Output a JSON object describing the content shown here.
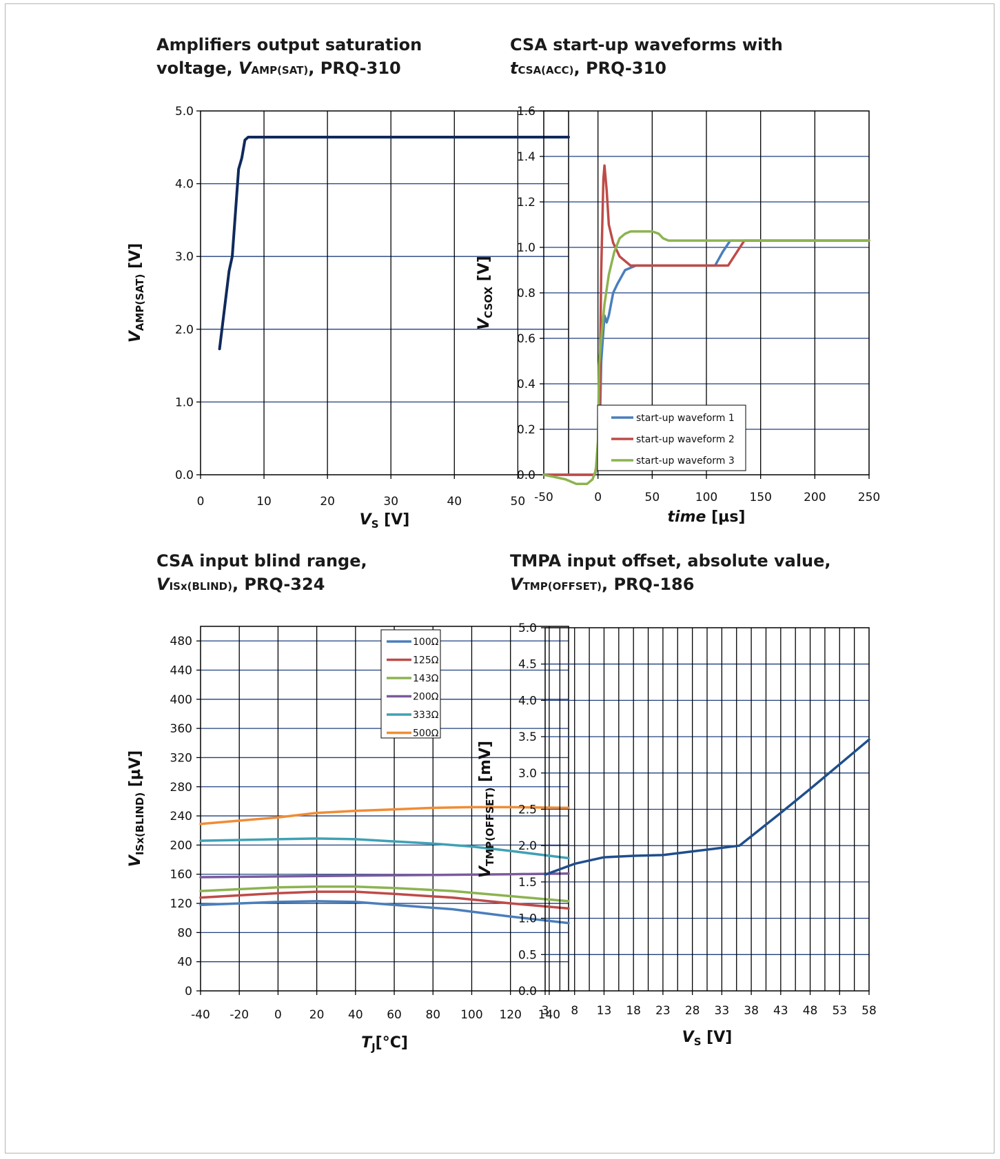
{
  "colors": {
    "grid": "#1f3f7f",
    "frame": "#000000",
    "page_border": "#b4b4b4"
  },
  "chart_data": [
    {
      "id": "amp-sat",
      "type": "line",
      "title_parts": [
        "Amplifiers output saturation",
        "voltage, ",
        "V",
        "AMP(SAT)",
        ", PRQ-310"
      ],
      "xlabel": {
        "v": "V",
        "sub": "S",
        "unit": " [V]"
      },
      "ylabel": {
        "v": "V",
        "sub": "AMP(SAT)",
        "unit": " [V]"
      },
      "xlim": [
        0,
        58
      ],
      "ylim": [
        0,
        5
      ],
      "xticks": [
        0,
        10,
        20,
        30,
        40,
        50
      ],
      "xtick_labels": [
        "0",
        "10",
        "20",
        "30",
        "40",
        "50"
      ],
      "yticks": [
        0,
        1,
        2,
        3,
        4,
        5
      ],
      "ytick_labels": [
        "0.0",
        "1.0",
        "2.0",
        "3.0",
        "4.0",
        "5.0"
      ],
      "vgrid": [
        10,
        20,
        30,
        40,
        50
      ],
      "hgrid": [
        1,
        2,
        3,
        4
      ],
      "series": [
        {
          "color": "#0f2a5c",
          "width": 4,
          "x": [
            3,
            4.5,
            5,
            6,
            6.5,
            7,
            7.5,
            58
          ],
          "y": [
            1.73,
            2.8,
            3.0,
            4.2,
            4.35,
            4.6,
            4.64,
            4.64
          ]
        }
      ]
    },
    {
      "id": "csa-startup",
      "type": "line",
      "title_parts": [
        "CSA start-up waveforms with",
        "t",
        "CSA(ACC)",
        ", PRQ-310"
      ],
      "xlabel": {
        "v": "time",
        "sub": "",
        "unit": " [µs]"
      },
      "ylabel": {
        "v": "V",
        "sub": "CSOX",
        "unit": " [V]"
      },
      "xlim": [
        -50,
        250
      ],
      "ylim": [
        0,
        1.6
      ],
      "xticks": [
        -50,
        0,
        50,
        100,
        150,
        200,
        250
      ],
      "xtick_labels": [
        "-50",
        "0",
        "50",
        "100",
        "150",
        "200",
        "250"
      ],
      "yticks": [
        0,
        0.2,
        0.4,
        0.6,
        0.8,
        1.0,
        1.2,
        1.4,
        1.6
      ],
      "ytick_labels": [
        "0.0",
        "0.2",
        "0.4",
        "0.6",
        "0.8",
        "1.0",
        "1.2",
        "1.4",
        "1.6"
      ],
      "vgrid": [
        0,
        50,
        100,
        150,
        200
      ],
      "hgrid": [
        0.2,
        0.4,
        0.6,
        0.8,
        1.0,
        1.2,
        1.4
      ],
      "legend": {
        "position": "bottom-center"
      },
      "series": [
        {
          "name": "start-up waveform 1",
          "color": "#4a7ebb",
          "width": 3.5,
          "x": [
            -50,
            -3,
            1,
            3,
            6,
            8,
            10,
            14,
            18,
            25,
            35,
            108,
            115,
            122,
            250
          ],
          "y": [
            0,
            0,
            0.05,
            0.5,
            0.7,
            0.67,
            0.7,
            0.8,
            0.84,
            0.9,
            0.92,
            0.92,
            0.98,
            1.03,
            1.03
          ]
        },
        {
          "name": "start-up waveform 2",
          "color": "#be4b48",
          "width": 3.5,
          "x": [
            -50,
            -3,
            1,
            3,
            5,
            6,
            8,
            10,
            14,
            20,
            25,
            30,
            40,
            100,
            110,
            120,
            135,
            250
          ],
          "y": [
            0,
            0,
            0.1,
            0.9,
            1.3,
            1.36,
            1.25,
            1.1,
            1.02,
            0.96,
            0.94,
            0.92,
            0.92,
            0.92,
            0.92,
            0.92,
            1.03,
            1.03
          ]
        },
        {
          "name": "start-up waveform 3",
          "color": "#8cb350",
          "width": 3.5,
          "x": [
            -50,
            -40,
            -30,
            -20,
            -10,
            -5,
            -2,
            0,
            1,
            3,
            6,
            10,
            15,
            20,
            25,
            30,
            50,
            56,
            60,
            65,
            250
          ],
          "y": [
            0,
            -0.01,
            -0.02,
            -0.04,
            -0.04,
            -0.02,
            0.02,
            0.15,
            0.48,
            0.6,
            0.75,
            0.88,
            0.98,
            1.04,
            1.06,
            1.07,
            1.07,
            1.06,
            1.04,
            1.03,
            1.03
          ]
        }
      ]
    },
    {
      "id": "csa-blind",
      "type": "line",
      "title_parts": [
        "CSA input blind range,",
        "V",
        "ISx(BLIND)",
        ", PRQ-324"
      ],
      "xlabel": {
        "v": "T",
        "sub": "J",
        "unit": "[°C]"
      },
      "ylabel": {
        "v": "V",
        "sub": "ISx(BLIND)",
        "unit": " [µV]"
      },
      "xlim": [
        -40,
        150
      ],
      "ylim": [
        0,
        500
      ],
      "xticks": [
        -40,
        -20,
        0,
        20,
        40,
        60,
        80,
        100,
        120,
        140
      ],
      "xtick_labels": [
        "-40",
        "-20",
        "0",
        "20",
        "40",
        "60",
        "80",
        "100",
        "120",
        "140"
      ],
      "yticks": [
        0,
        40,
        80,
        120,
        160,
        200,
        240,
        280,
        320,
        360,
        400,
        440,
        480
      ],
      "ytick_labels": [
        "0",
        "40",
        "80",
        "120",
        "160",
        "200",
        "240",
        "280",
        "320",
        "360",
        "400",
        "440",
        "480"
      ],
      "vgrid": [
        -20,
        0,
        20,
        40,
        60,
        80,
        100,
        120,
        140
      ],
      "hgrid": [
        40,
        80,
        120,
        160,
        200,
        240,
        280,
        320,
        360,
        400,
        440,
        480
      ],
      "legend": {
        "position": "top-right"
      },
      "series": [
        {
          "name": "100Ω",
          "color": "#4a7ebb",
          "width": 3.5,
          "x": [
            -40,
            0,
            20,
            40,
            60,
            90,
            120,
            150
          ],
          "y": [
            118,
            122,
            123,
            122,
            118,
            112,
            102,
            93
          ]
        },
        {
          "name": "125Ω",
          "color": "#be4b48",
          "width": 3.5,
          "x": [
            -40,
            0,
            20,
            40,
            60,
            90,
            120,
            150
          ],
          "y": [
            128,
            134,
            136,
            136,
            133,
            128,
            120,
            113
          ]
        },
        {
          "name": "143Ω",
          "color": "#8cb350",
          "width": 3.5,
          "x": [
            -40,
            0,
            20,
            40,
            60,
            90,
            120,
            150
          ],
          "y": [
            137,
            142,
            143,
            143,
            141,
            137,
            130,
            123
          ]
        },
        {
          "name": "200Ω",
          "color": "#7a5a9e",
          "width": 3.5,
          "x": [
            -40,
            0,
            40,
            80,
            120,
            150
          ],
          "y": [
            156,
            157,
            158,
            159,
            160,
            161
          ]
        },
        {
          "name": "333Ω",
          "color": "#3fa1b4",
          "width": 3.5,
          "x": [
            -40,
            0,
            20,
            40,
            60,
            80,
            100,
            120,
            150
          ],
          "y": [
            206,
            208,
            209,
            208,
            205,
            202,
            198,
            192,
            182
          ]
        },
        {
          "name": "500Ω",
          "color": "#f08c35",
          "width": 3.5,
          "x": [
            -40,
            0,
            20,
            40,
            60,
            80,
            100,
            120,
            150
          ],
          "y": [
            229,
            238,
            244,
            247,
            249,
            251,
            252,
            252,
            251
          ]
        }
      ]
    },
    {
      "id": "tmpa-offset",
      "type": "line",
      "title_parts": [
        "TMPA input offset, absolute value,",
        "V",
        "TMP(OFFSET)",
        ", PRQ-186"
      ],
      "xlabel": {
        "v": "V",
        "sub": "S",
        "unit": " [V]"
      },
      "ylabel": {
        "v": "V",
        "sub": "TMP(OFFSET)",
        "unit": " [mV]"
      },
      "xlim": [
        3,
        58
      ],
      "ylim": [
        0,
        5
      ],
      "xticks": [
        3,
        8,
        13,
        18,
        23,
        28,
        33,
        38,
        43,
        48,
        53,
        58
      ],
      "xtick_labels": [
        "3",
        "8",
        "13",
        "18",
        "23",
        "28",
        "33",
        "38",
        "43",
        "48",
        "53",
        "58"
      ],
      "yticks": [
        0,
        0.5,
        1,
        1.5,
        2,
        2.5,
        3,
        3.5,
        4,
        4.5,
        5
      ],
      "ytick_labels": [
        "0.0",
        "0.5",
        "1.0",
        "1.5",
        "2.0",
        "2.5",
        "3.0",
        "3.5",
        "4.0",
        "4.5",
        "5.0"
      ],
      "vgrid": [
        5.5,
        8,
        10.5,
        13,
        15.5,
        18,
        20.5,
        23,
        25.5,
        28,
        30.5,
        33,
        35.5,
        38,
        40.5,
        43,
        45.5,
        48,
        50.5,
        53,
        55.5
      ],
      "hgrid": [
        0.5,
        1,
        1.5,
        2,
        2.5,
        3,
        3.5,
        4,
        4.5
      ],
      "series": [
        {
          "color": "#1f4e8c",
          "width": 3.5,
          "x": [
            3,
            8,
            13,
            18,
            23,
            28,
            33,
            36,
            43,
            48,
            53,
            58
          ],
          "y": [
            1.6,
            1.75,
            1.84,
            1.86,
            1.87,
            1.92,
            1.97,
            2.0,
            2.45,
            2.78,
            3.12,
            3.46
          ]
        }
      ]
    }
  ]
}
